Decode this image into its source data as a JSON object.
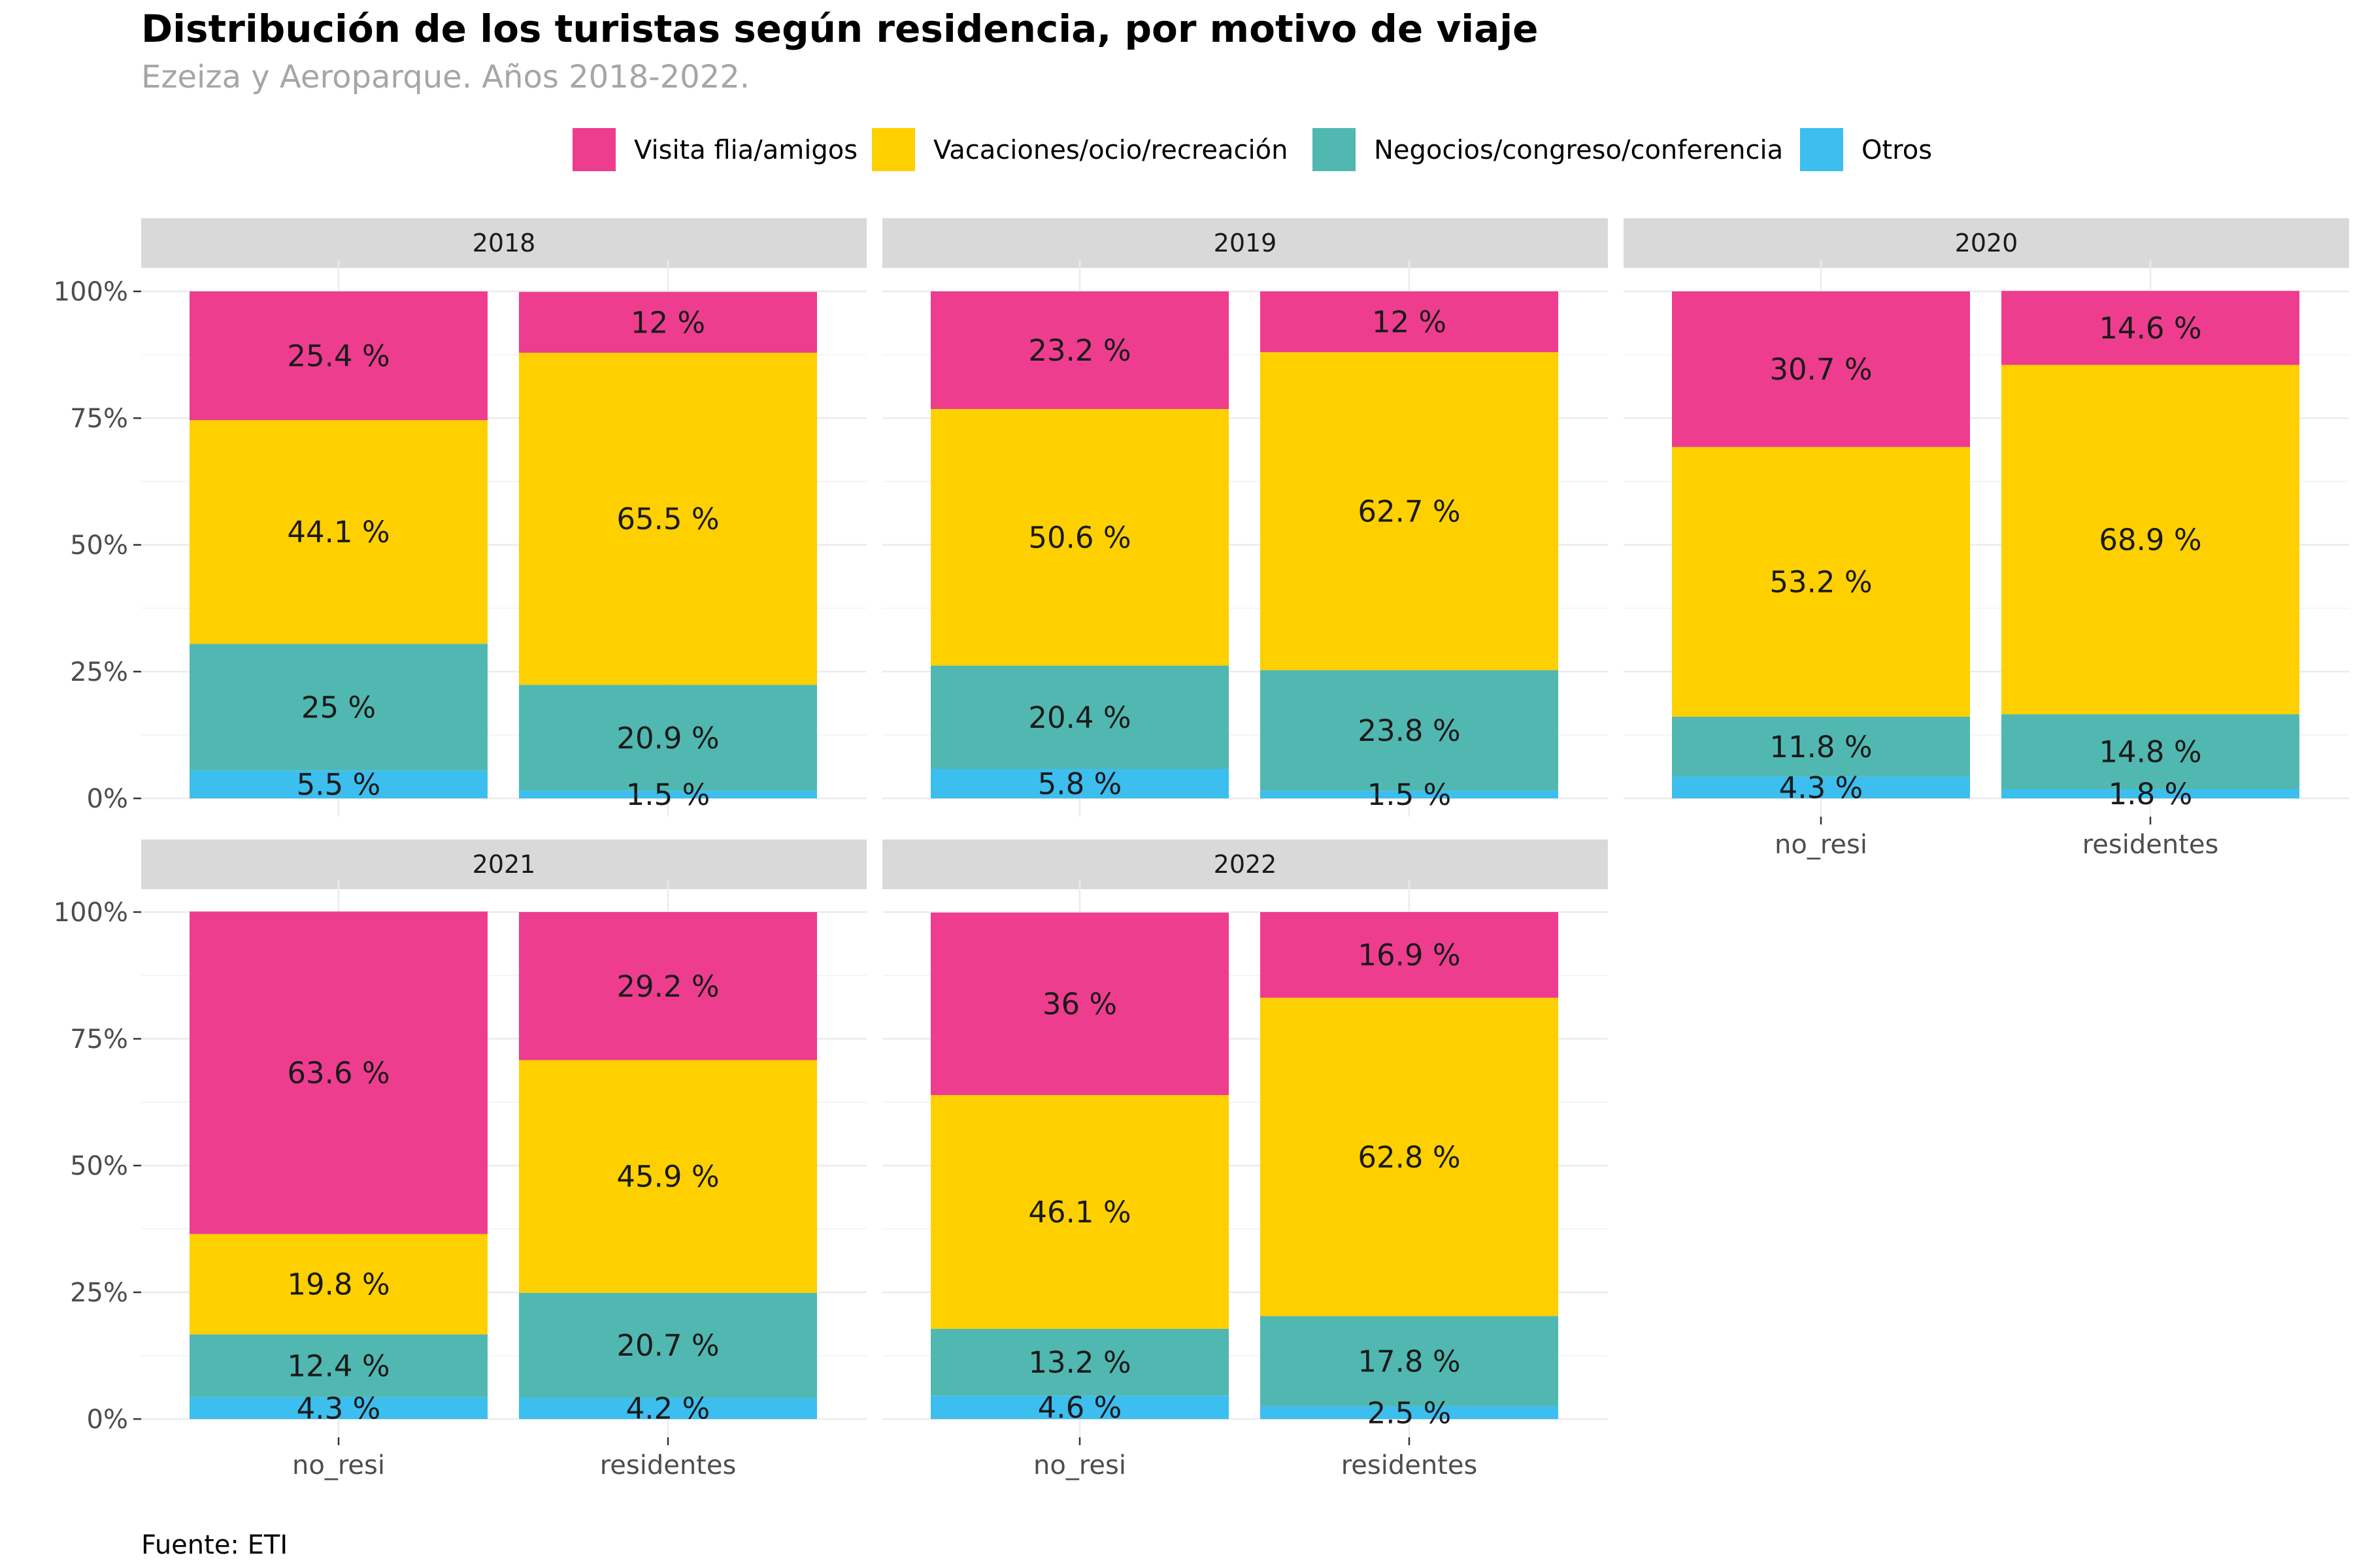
{
  "title": "Distribución de los turistas según residencia, por motivo de viaje",
  "subtitle": "Ezeiza y Aeroparque. Años 2018-2022.",
  "caption": "Fuente: ETI",
  "legend": [
    {
      "label": "Visita flia/amigos",
      "color": "#EE3D8F"
    },
    {
      "label": "Vacaciones/ocio/recreación",
      "color": "#FED000"
    },
    {
      "label": "Negocios/congreso/conferencia",
      "color": "#50B8B1"
    },
    {
      "label": "Otros",
      "color": "#3CBEEF"
    }
  ],
  "chart_data": {
    "type": "bar",
    "stacked": true,
    "facet_by": "year",
    "categories": [
      "no_resi",
      "residentes"
    ],
    "ylim": [
      0,
      100
    ],
    "yticks": [
      "0%",
      "25%",
      "50%",
      "75%",
      "100%"
    ],
    "stack_order_bottom_to_top": [
      "Otros",
      "Negocios/congreso/conferencia",
      "Vacaciones/ocio/recreación",
      "Visita flia/amigos"
    ],
    "legend_position": "top",
    "grid": true,
    "facets": [
      {
        "year": "2018",
        "groups": [
          {
            "category": "no_resi",
            "values": {
              "Otros": 5.5,
              "Negocios/congreso/conferencia": 25,
              "Vacaciones/ocio/recreación": 44.1,
              "Visita flia/amigos": 25.4
            },
            "labels": {
              "Otros": "5.5 %",
              "Negocios/congreso/conferencia": "25 %",
              "Vacaciones/ocio/recreación": "44.1 %",
              "Visita flia/amigos": "25.4 %"
            }
          },
          {
            "category": "residentes",
            "values": {
              "Otros": 1.5,
              "Negocios/congreso/conferencia": 20.9,
              "Vacaciones/ocio/recreación": 65.5,
              "Visita flia/amigos": 12
            },
            "labels": {
              "Otros": "1.5 %",
              "Negocios/congreso/conferencia": "20.9 %",
              "Vacaciones/ocio/recreación": "65.5 %",
              "Visita flia/amigos": "12 %"
            }
          }
        ]
      },
      {
        "year": "2019",
        "groups": [
          {
            "category": "no_resi",
            "values": {
              "Otros": 5.8,
              "Negocios/congreso/conferencia": 20.4,
              "Vacaciones/ocio/recreación": 50.6,
              "Visita flia/amigos": 23.2
            },
            "labels": {
              "Otros": "5.8 %",
              "Negocios/congreso/conferencia": "20.4 %",
              "Vacaciones/ocio/recreación": "50.6 %",
              "Visita flia/amigos": "23.2 %"
            }
          },
          {
            "category": "residentes",
            "values": {
              "Otros": 1.5,
              "Negocios/congreso/conferencia": 23.8,
              "Vacaciones/ocio/recreación": 62.7,
              "Visita flia/amigos": 12
            },
            "labels": {
              "Otros": "1.5 %",
              "Negocios/congreso/conferencia": "23.8 %",
              "Vacaciones/ocio/recreación": "62.7 %",
              "Visita flia/amigos": "12 %"
            }
          }
        ]
      },
      {
        "year": "2020",
        "groups": [
          {
            "category": "no_resi",
            "values": {
              "Otros": 4.3,
              "Negocios/congreso/conferencia": 11.8,
              "Vacaciones/ocio/recreación": 53.2,
              "Visita flia/amigos": 30.7
            },
            "labels": {
              "Otros": "4.3 %",
              "Negocios/congreso/conferencia": "11.8 %",
              "Vacaciones/ocio/recreación": "53.2 %",
              "Visita flia/amigos": "30.7 %"
            }
          },
          {
            "category": "residentes",
            "values": {
              "Otros": 1.8,
              "Negocios/congreso/conferencia": 14.8,
              "Vacaciones/ocio/recreación": 68.9,
              "Visita flia/amigos": 14.6
            },
            "labels": {
              "Otros": "1.8 %",
              "Negocios/congreso/conferencia": "14.8 %",
              "Vacaciones/ocio/recreación": "68.9 %",
              "Visita flia/amigos": "14.6 %"
            }
          }
        ]
      },
      {
        "year": "2021",
        "groups": [
          {
            "category": "no_resi",
            "values": {
              "Otros": 4.3,
              "Negocios/congreso/conferencia": 12.4,
              "Vacaciones/ocio/recreación": 19.8,
              "Visita flia/amigos": 63.6
            },
            "labels": {
              "Otros": "4.3 %",
              "Negocios/congreso/conferencia": "12.4 %",
              "Vacaciones/ocio/recreación": "19.8 %",
              "Visita flia/amigos": "63.6 %"
            }
          },
          {
            "category": "residentes",
            "values": {
              "Otros": 4.2,
              "Negocios/congreso/conferencia": 20.7,
              "Vacaciones/ocio/recreación": 45.9,
              "Visita flia/amigos": 29.2
            },
            "labels": {
              "Otros": "4.2 %",
              "Negocios/congreso/conferencia": "20.7 %",
              "Vacaciones/ocio/recreación": "45.9 %",
              "Visita flia/amigos": "29.2 %"
            }
          }
        ]
      },
      {
        "year": "2022",
        "groups": [
          {
            "category": "no_resi",
            "values": {
              "Otros": 4.6,
              "Negocios/congreso/conferencia": 13.2,
              "Vacaciones/ocio/recreación": 46.1,
              "Visita flia/amigos": 36
            },
            "labels": {
              "Otros": "4.6 %",
              "Negocios/congreso/conferencia": "13.2 %",
              "Vacaciones/ocio/recreación": "46.1 %",
              "Visita flia/amigos": "36 %"
            }
          },
          {
            "category": "residentes",
            "values": {
              "Otros": 2.5,
              "Negocios/congreso/conferencia": 17.8,
              "Vacaciones/ocio/recreación": 62.8,
              "Visita flia/amigos": 16.9
            },
            "labels": {
              "Otros": "2.5 %",
              "Negocios/congreso/conferencia": "17.8 %",
              "Vacaciones/ocio/recreación": "62.8 %",
              "Visita flia/amigos": "16.9 %"
            }
          }
        ]
      }
    ]
  }
}
